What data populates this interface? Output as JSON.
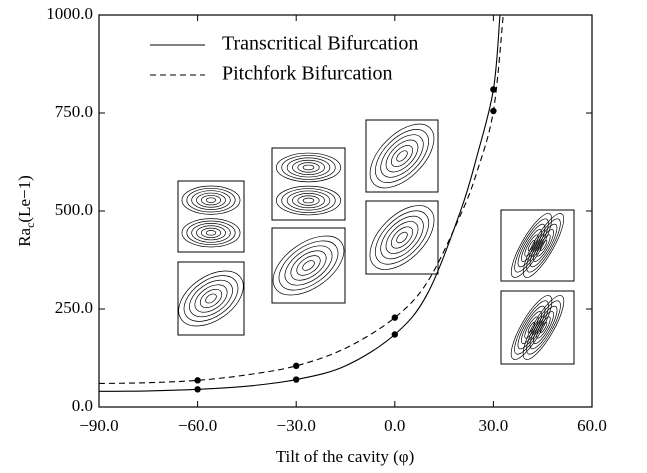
{
  "chart_data": {
    "type": "line",
    "x_label": "Tilt of the cavity (φ)",
    "y_label": {
      "main": "Ra",
      "sub": "c",
      "rest": "(Le−1)"
    },
    "xlim": [
      -90,
      60
    ],
    "xticks": [
      {
        "value": -90,
        "label": "−90.0"
      },
      {
        "value": -60,
        "label": "−60.0"
      },
      {
        "value": -30,
        "label": "−30.0"
      },
      {
        "value": 0,
        "label": "0.0"
      },
      {
        "value": 30,
        "label": "30.0"
      },
      {
        "value": 60,
        "label": "60.0"
      }
    ],
    "ylim": [
      0,
      1000
    ],
    "yticks": [
      {
        "value": 0,
        "label": "0.0"
      },
      {
        "value": 250,
        "label": "250.0"
      },
      {
        "value": 500,
        "label": "500.0"
      },
      {
        "value": 750,
        "label": "750.0"
      },
      {
        "value": 1000,
        "label": "1000.0"
      }
    ],
    "series": [
      {
        "name": "Transcritical Bifurcation",
        "color": "#000000",
        "dash": "solid",
        "x": [
          -90,
          -75,
          -60,
          -45,
          -30,
          -15,
          0,
          10,
          20,
          25,
          30,
          32
        ],
        "values": [
          40,
          41,
          45,
          53,
          70,
          105,
          185,
          290,
          500,
          640,
          810,
          1000
        ]
      },
      {
        "name": "Pitchfork Bifurcation",
        "color": "#000000",
        "dash": "dashed",
        "x": [
          -90,
          -75,
          -60,
          -45,
          -30,
          -15,
          0,
          10,
          20,
          25,
          30,
          33
        ],
        "values": [
          60,
          62,
          68,
          82,
          105,
          150,
          228,
          320,
          490,
          600,
          755,
          1000
        ]
      }
    ],
    "points": [
      {
        "x": [
          -60,
          -30,
          0,
          30
        ],
        "values": [
          45,
          70,
          185,
          810
        ]
      },
      {
        "x": [
          -60,
          -30,
          0,
          30
        ],
        "values": [
          68,
          105,
          228,
          755
        ]
      }
    ],
    "legend": "upper left"
  }
}
